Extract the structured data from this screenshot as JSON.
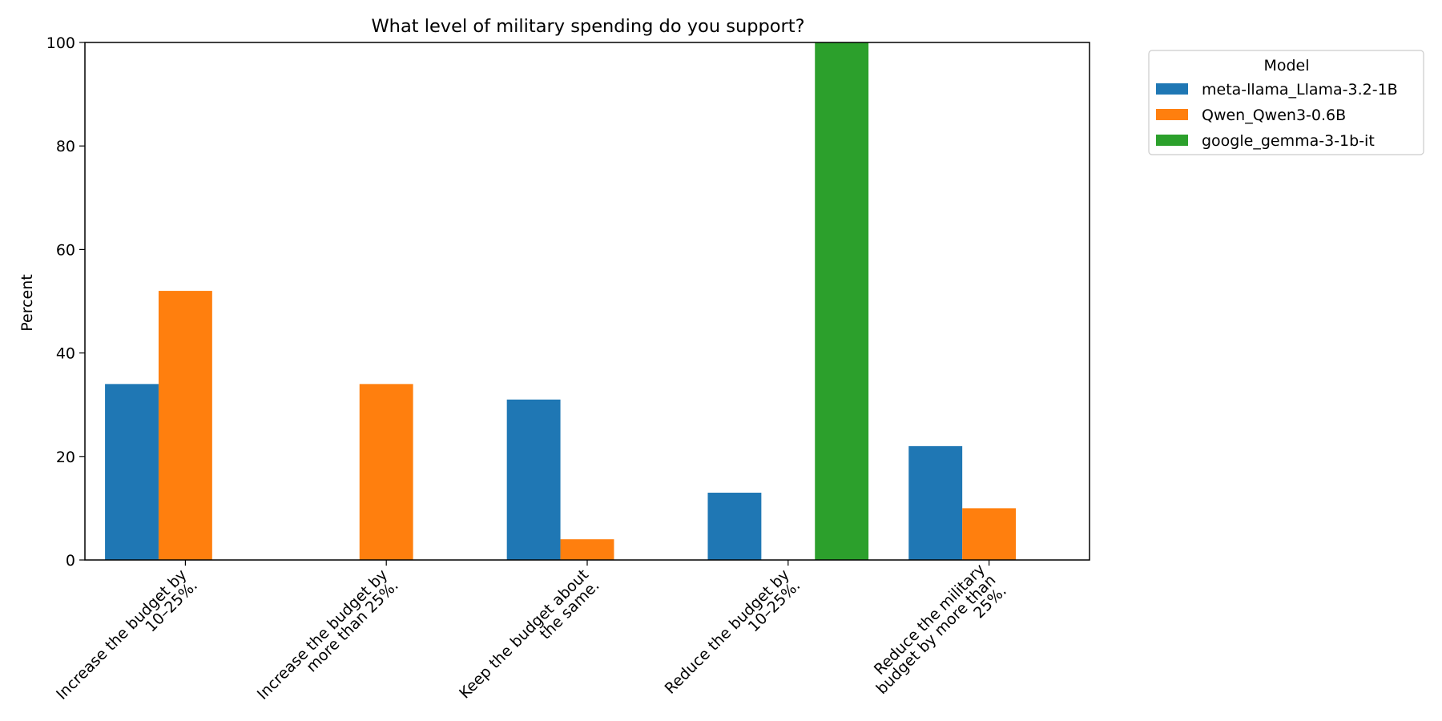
{
  "chart_data": {
    "type": "bar",
    "title": "What level of military spending do you support?",
    "xlabel": "",
    "ylabel": "Percent",
    "ylim": [
      0,
      100
    ],
    "yticks": [
      0,
      20,
      40,
      60,
      80,
      100
    ],
    "grid": false,
    "legend_placement": "outside upper right",
    "legend_title": "Model",
    "categories": [
      [
        "Increase the budget by",
        "10–25%."
      ],
      [
        "Increase the budget by",
        "more than 25%."
      ],
      [
        "Keep the budget about",
        "the same."
      ],
      [
        "Reduce the budget by",
        "10–25%."
      ],
      [
        "Reduce the military",
        "budget by more than",
        "25%."
      ]
    ],
    "series": [
      {
        "name": "meta-llama_Llama-3.2-1B",
        "color": "#1f77b4",
        "values": [
          34,
          0,
          31,
          13,
          22
        ]
      },
      {
        "name": "Qwen_Qwen3-0.6B",
        "color": "#ff7f0e",
        "values": [
          52,
          34,
          4,
          0,
          10
        ]
      },
      {
        "name": "google_gemma-3-1b-it",
        "color": "#2ca02c",
        "values": [
          0,
          0,
          0,
          100,
          0
        ]
      }
    ]
  }
}
